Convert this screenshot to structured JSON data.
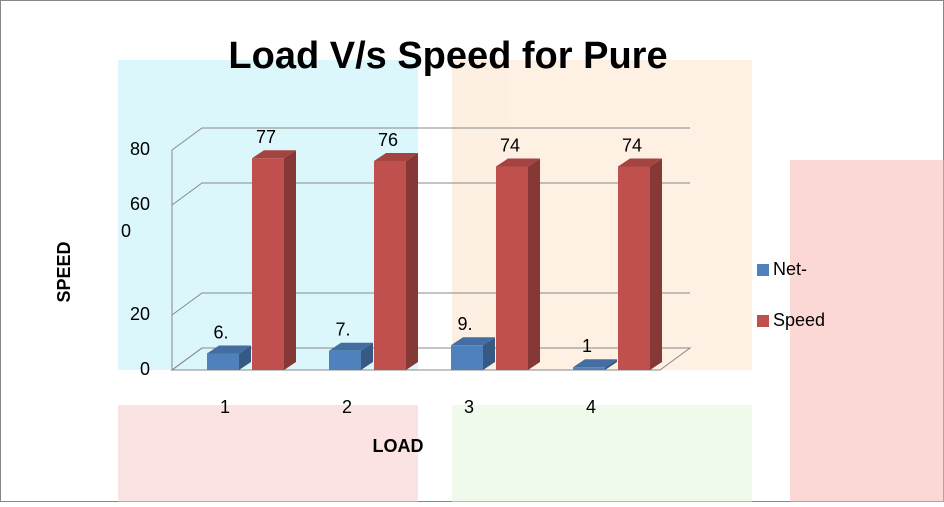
{
  "chart_data": {
    "type": "bar3d",
    "title": "Load V/s Speed for Pure",
    "xlabel": "LOAD",
    "ylabel": "SPEED",
    "categories": [
      "1",
      "2",
      "3",
      "4"
    ],
    "series": [
      {
        "name": "Net-",
        "color": "#4f81bd",
        "values": [
          6,
          7,
          9,
          1
        ],
        "value_labels": [
          "6.",
          "7.",
          "9.",
          "1"
        ]
      },
      {
        "name": "Speed",
        "color": "#c0504d",
        "values": [
          77,
          76,
          74,
          74
        ]
      }
    ],
    "ylim": [
      0,
      80
    ],
    "yticks": [
      0,
      20,
      60,
      80
    ],
    "ytick_extra_label": "0",
    "grid": true,
    "legend": "right"
  }
}
